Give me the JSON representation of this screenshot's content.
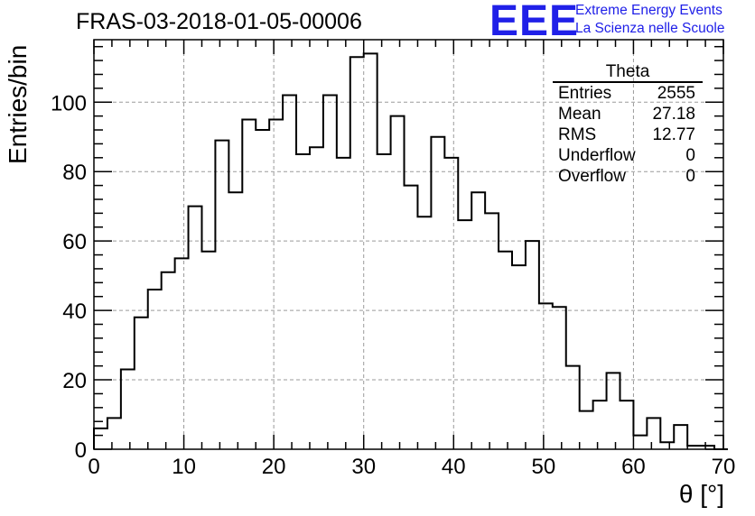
{
  "chart_data": {
    "type": "histogram",
    "title": "FRAS-03-2018-01-05-00006",
    "xlabel": "θ [°]",
    "ylabel": "Entries/bin",
    "xlim": [
      0,
      70
    ],
    "ylim": [
      0,
      118
    ],
    "x_ticks": [
      "0",
      "10",
      "20",
      "30",
      "40",
      "50",
      "60",
      "70"
    ],
    "y_ticks": [
      "0",
      "20",
      "40",
      "60",
      "80",
      "100"
    ],
    "grid": true,
    "bin_width": 1.5,
    "bin_edges_start": 0,
    "values": [
      6,
      9,
      23,
      38,
      46,
      51,
      55,
      70,
      57,
      89,
      74,
      95,
      92,
      95,
      102,
      85,
      87,
      102,
      84,
      113,
      114,
      85,
      96,
      76,
      67,
      90,
      84,
      66,
      74,
      68,
      57,
      53,
      60,
      42,
      41,
      24,
      11,
      14,
      22,
      14,
      4,
      9,
      2,
      7,
      1,
      1,
      0
    ],
    "stats_box": {
      "name": "Theta",
      "rows": [
        {
          "label": "Entries",
          "value": "2555"
        },
        {
          "label": "Mean",
          "value": "27.18"
        },
        {
          "label": "RMS",
          "value": "12.77"
        },
        {
          "label": "Underflow",
          "value": "0"
        },
        {
          "label": "Overflow",
          "value": "0"
        }
      ]
    }
  },
  "logo": {
    "mark": "EEE",
    "line1": "Extreme Energy Events",
    "line2": "La Scienza nelle Scuole",
    "color": "#2020e8"
  }
}
